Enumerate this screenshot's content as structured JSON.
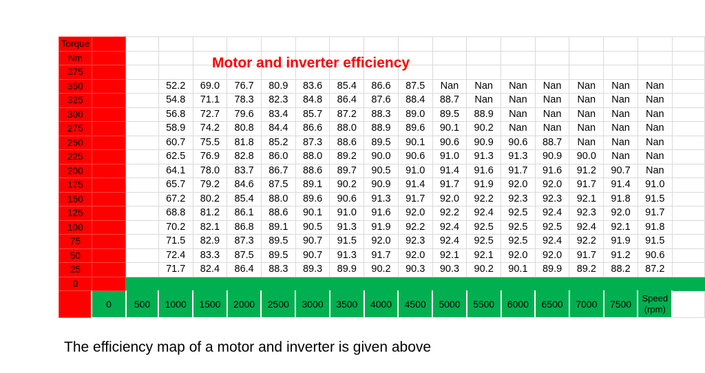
{
  "caption": "The efficiency map of a motor and inverter is given above",
  "chart_data": {
    "type": "table",
    "title": "Motor and inverter efficiency",
    "ylabel": [
      "Torque",
      "Nm"
    ],
    "xlabel": [
      "Speed",
      "(rpm)"
    ],
    "torque": [
      375,
      350,
      325,
      300,
      275,
      250,
      225,
      200,
      175,
      150,
      125,
      100,
      75,
      50,
      25,
      0
    ],
    "speed": [
      0,
      500,
      1000,
      1500,
      2000,
      2500,
      3000,
      3500,
      4000,
      4500,
      5000,
      5500,
      6000,
      6500,
      7000,
      7500
    ],
    "values": {
      "350": [
        "52.2",
        "69.0",
        "76.7",
        "80.9",
        "83.6",
        "85.4",
        "86.6",
        "87.5",
        "Nan",
        "Nan",
        "Nan",
        "Nan",
        "Nan",
        "Nan",
        "Nan"
      ],
      "325": [
        "54.8",
        "71.1",
        "78.3",
        "82.3",
        "84.8",
        "86.4",
        "87.6",
        "88.4",
        "88.7",
        "Nan",
        "Nan",
        "Nan",
        "Nan",
        "Nan",
        "Nan"
      ],
      "300": [
        "56.8",
        "72.7",
        "79.6",
        "83.4",
        "85.7",
        "87.2",
        "88.3",
        "89.0",
        "89.5",
        "88.9",
        "Nan",
        "Nan",
        "Nan",
        "Nan",
        "Nan"
      ],
      "275": [
        "58.9",
        "74.2",
        "80.8",
        "84.4",
        "86.6",
        "88.0",
        "88.9",
        "89.6",
        "90.1",
        "90.2",
        "Nan",
        "Nan",
        "Nan",
        "Nan",
        "Nan"
      ],
      "250": [
        "60.7",
        "75.5",
        "81.8",
        "85.2",
        "87.3",
        "88.6",
        "89.5",
        "90.1",
        "90.6",
        "90.9",
        "90.6",
        "88.7",
        "Nan",
        "Nan",
        "Nan"
      ],
      "225": [
        "62.5",
        "76.9",
        "82.8",
        "86.0",
        "88.0",
        "89.2",
        "90.0",
        "90.6",
        "91.0",
        "91.3",
        "91.3",
        "90.9",
        "90.0",
        "Nan",
        "Nan"
      ],
      "200": [
        "64.1",
        "78.0",
        "83.7",
        "86.7",
        "88.6",
        "89.7",
        "90.5",
        "91.0",
        "91.4",
        "91.6",
        "91.7",
        "91.6",
        "91.2",
        "90.7",
        "Nan"
      ],
      "175": [
        "65.7",
        "79.2",
        "84.6",
        "87.5",
        "89.1",
        "90.2",
        "90.9",
        "91.4",
        "91.7",
        "91.9",
        "92.0",
        "92.0",
        "91.7",
        "91.4",
        "91.0"
      ],
      "150": [
        "67.2",
        "80.2",
        "85.4",
        "88.0",
        "89.6",
        "90.6",
        "91.3",
        "91.7",
        "92.0",
        "92.2",
        "92.3",
        "92.3",
        "92.1",
        "91.8",
        "91.5"
      ],
      "125": [
        "68.8",
        "81.2",
        "86.1",
        "88.6",
        "90.1",
        "91.0",
        "91.6",
        "92.0",
        "92.2",
        "92.4",
        "92.5",
        "92.4",
        "92.3",
        "92.0",
        "91.7"
      ],
      "100": [
        "70.2",
        "82.1",
        "86.8",
        "89.1",
        "90.5",
        "91.3",
        "91.9",
        "92.2",
        "92.4",
        "92.5",
        "92.5",
        "92.5",
        "92.4",
        "92.1",
        "91.8"
      ],
      "75": [
        "71.5",
        "82.9",
        "87.3",
        "89.5",
        "90.7",
        "91.5",
        "92.0",
        "92.3",
        "92.4",
        "92.5",
        "92.5",
        "92.4",
        "92.2",
        "91.9",
        "91.5"
      ],
      "50": [
        "72.4",
        "83.3",
        "87.5",
        "89.5",
        "90.7",
        "91.3",
        "91.7",
        "92.0",
        "92.1",
        "92.1",
        "92.0",
        "92.0",
        "91.7",
        "91.2",
        "90.6"
      ],
      "25": [
        "71.7",
        "82.4",
        "86.4",
        "88.3",
        "89.3",
        "89.9",
        "90.2",
        "90.3",
        "90.3",
        "90.2",
        "90.1",
        "89.9",
        "89.2",
        "88.2",
        "87.2"
      ]
    },
    "colors": {
      "axis_fill": "#ff0000",
      "speed_fill": "#00b050",
      "title": "#ff0000",
      "gridline": "#d9d9d9"
    }
  }
}
